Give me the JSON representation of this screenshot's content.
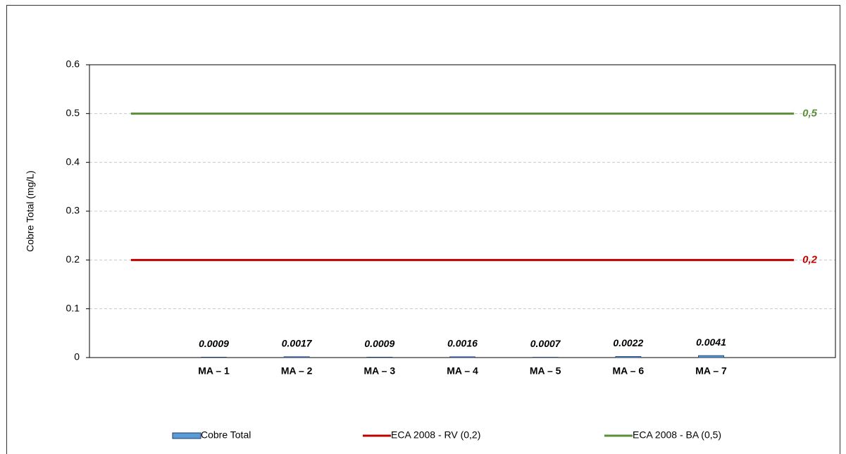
{
  "chart_data": {
    "type": "bar",
    "ylabel": "Cobre Total (mg/L)",
    "categories": [
      null,
      "MA – 1",
      "MA – 2",
      "MA – 3",
      "MA – 4",
      "MA – 5",
      "MA – 6",
      "MA – 7",
      null
    ],
    "series": [
      {
        "name": "Cobre Total",
        "type": "bar",
        "color": "#5b9bd5",
        "values": [
          null,
          0.0009,
          0.0017,
          0.0009,
          0.0016,
          0.0007,
          0.0022,
          0.0041,
          null
        ]
      },
      {
        "name": "ECA 2008 - RV (0,2)",
        "type": "line",
        "color": "#c00000",
        "values": [
          0.2,
          0.2,
          0.2,
          0.2,
          0.2,
          0.2,
          0.2,
          0.2,
          0.2
        ],
        "value_labels": [
          null,
          null,
          null,
          null,
          null,
          null,
          null,
          null,
          "0,2"
        ]
      },
      {
        "name": "ECA 2008 - BA (0,5)",
        "type": "line",
        "color": "#5b8f3a",
        "values": [
          0.5,
          0.5,
          0.5,
          0.5,
          0.5,
          0.5,
          0.5,
          0.5,
          0.5
        ],
        "value_labels": [
          null,
          null,
          null,
          null,
          null,
          null,
          null,
          null,
          "0,5"
        ]
      }
    ],
    "ylim": [
      0,
      0.6
    ],
    "yticks": [
      0,
      0.1,
      0.2,
      0.3,
      0.4,
      0.5,
      0.6
    ],
    "grid": true,
    "legend": "bottom"
  }
}
